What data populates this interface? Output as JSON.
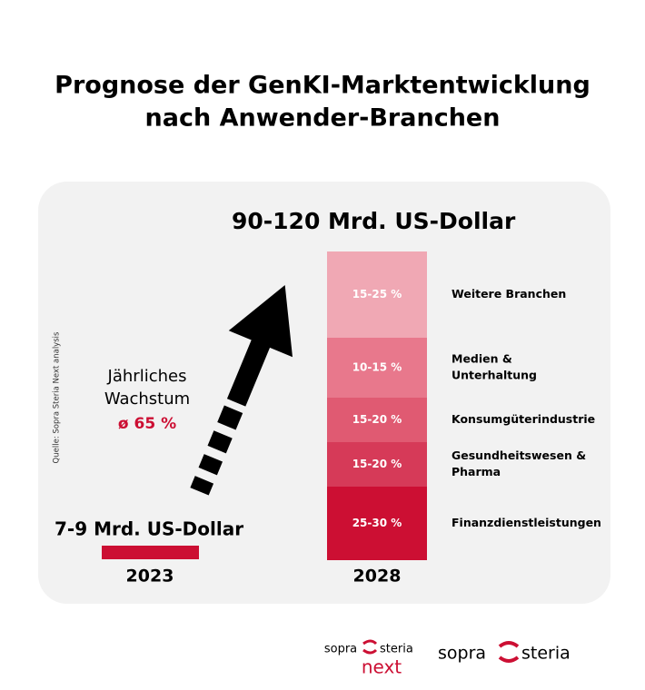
{
  "header": {
    "title_line1": "Prognose der GenKI-Marktentwicklung",
    "title_line2": "nach Anwender-Branchen"
  },
  "left": {
    "amount": "7-9 Mrd. US-Dollar",
    "year": "2023"
  },
  "growth": {
    "line1": "Jährliches",
    "line2": "Wachstum",
    "rate": "ø 65 %"
  },
  "right": {
    "amount": "90-120 Mrd. US-Dollar",
    "year": "2028",
    "segments": [
      {
        "share": "15-25 %",
        "label_lines": [
          "Weitere Branchen"
        ]
      },
      {
        "share": "10-15 %",
        "label_lines": [
          "Medien &",
          "Unterhaltung"
        ]
      },
      {
        "share": "15-20 %",
        "label_lines": [
          "Konsumgüterindustrie"
        ]
      },
      {
        "share": "15-20 %",
        "label_lines": [
          "Gesundheitswesen &",
          "Pharma"
        ]
      },
      {
        "share": "25-30 %",
        "label_lines": [
          "Finanzdienstleistungen"
        ]
      }
    ]
  },
  "source": "Quelle: Sopra Steria Next analysis",
  "logos": {
    "logo1_top": "sopra",
    "logo1_top2": "steria",
    "logo1_bottom": "next",
    "logo2_left": "sopra",
    "logo2_right": "steria"
  }
}
